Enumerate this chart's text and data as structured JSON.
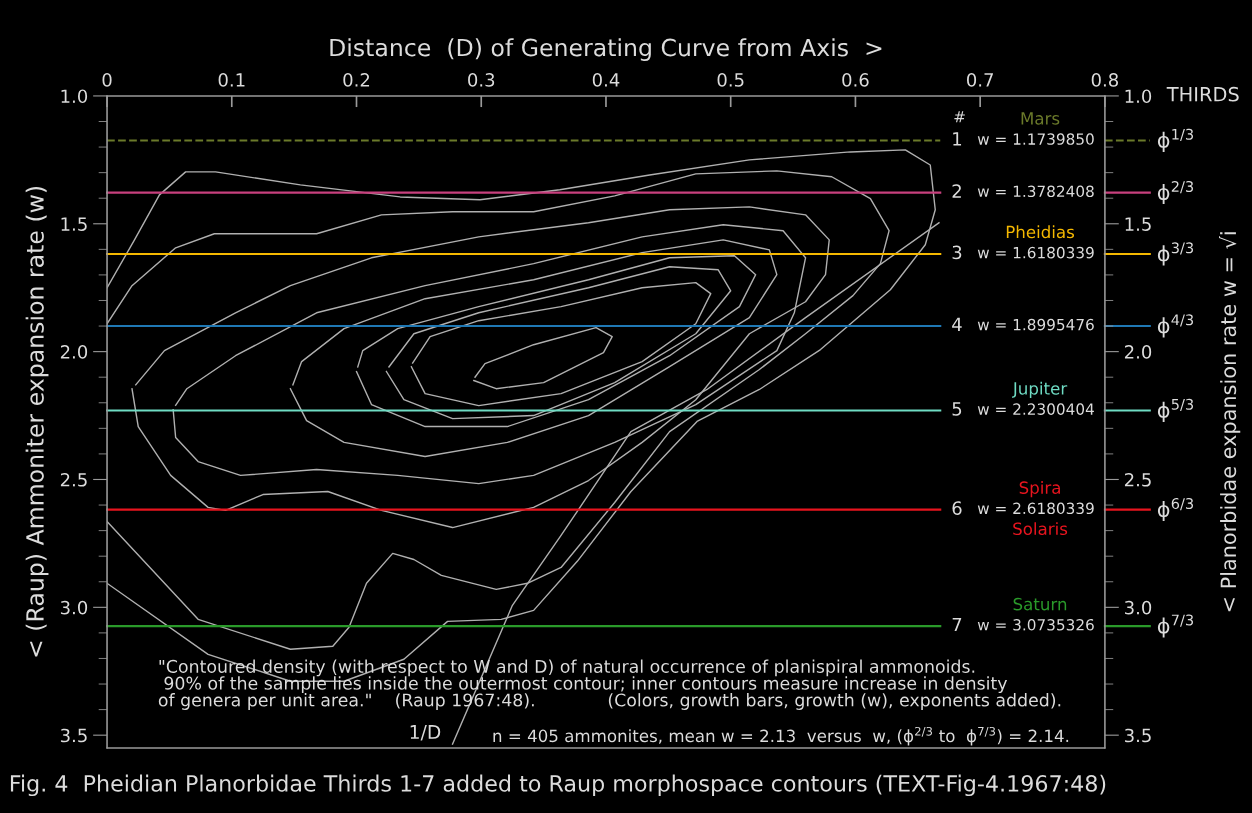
{
  "chart_data": {
    "type": "line",
    "title": "Fig. 4  Pheidian Planorbidae Thirds 1-7 added to Raup morphospace contours (TEXT-Fig-4.1967:48)",
    "xlabel": "Distance  (D) of Generating Curve from Axis  >",
    "ylabel": "< (Raup) Ammoniter expansion rate (w)",
    "y2label": "< Planorbidae expansion rate w = √i",
    "xlim": [
      0,
      0.8
    ],
    "xticks": [
      0,
      0.1,
      0.2,
      0.3,
      0.4,
      0.5,
      0.6,
      0.7,
      0.8
    ],
    "ylim": [
      3.55,
      1.0
    ],
    "yticks": [
      {
        "value": 1.0,
        "label": "1.0"
      },
      {
        "value": 1.5,
        "label": "1.5"
      },
      {
        "value": 2.0,
        "label": "2.0"
      },
      {
        "value": 2.5,
        "label": "2.5"
      },
      {
        "value": 3.0,
        "label": "3.0"
      },
      {
        "value": 3.5,
        "label": "3.5"
      },
      {
        "value": 1.1,
        "label": null
      },
      {
        "value": 1.2,
        "label": null
      },
      {
        "value": 1.3,
        "label": null
      },
      {
        "value": 1.4,
        "label": null
      },
      {
        "value": 1.6,
        "label": null
      },
      {
        "value": 1.7,
        "label": null
      },
      {
        "value": 1.8,
        "label": null
      },
      {
        "value": 1.9,
        "label": null
      },
      {
        "value": 2.1,
        "label": null
      },
      {
        "value": 2.2,
        "label": null
      },
      {
        "value": 2.3,
        "label": null
      },
      {
        "value": 2.4,
        "label": null
      },
      {
        "value": 2.6,
        "label": null
      },
      {
        "value": 2.7,
        "label": null
      },
      {
        "value": 2.8,
        "label": null
      },
      {
        "value": 2.9,
        "label": null
      },
      {
        "value": 3.1,
        "label": null
      },
      {
        "value": 3.2,
        "label": null
      },
      {
        "value": 3.3,
        "label": null
      },
      {
        "value": 3.4,
        "label": null
      }
    ],
    "y2lim": [
      3.55,
      1.0
    ],
    "y2ticks": [
      {
        "value": 1.0,
        "label": "1.0"
      },
      {
        "value": 1.5,
        "label": "1.5"
      },
      {
        "value": 2.0,
        "label": "2.0"
      },
      {
        "value": 2.5,
        "label": "2.5"
      },
      {
        "value": 3.0,
        "label": "3.0"
      },
      {
        "value": 3.5,
        "label": "3.5"
      },
      {
        "value": 1.1,
        "label": null
      },
      {
        "value": 1.2,
        "label": null
      },
      {
        "value": 1.3,
        "label": null
      },
      {
        "value": 1.4,
        "label": null
      },
      {
        "value": 1.6,
        "label": null
      },
      {
        "value": 1.7,
        "label": null
      },
      {
        "value": 1.8,
        "label": null
      },
      {
        "value": 1.9,
        "label": null
      },
      {
        "value": 2.1,
        "label": null
      },
      {
        "value": 2.2,
        "label": null
      },
      {
        "value": 2.3,
        "label": null
      },
      {
        "value": 2.4,
        "label": null
      },
      {
        "value": 2.6,
        "label": null
      },
      {
        "value": 2.7,
        "label": null
      },
      {
        "value": 2.8,
        "label": null
      },
      {
        "value": 2.9,
        "label": null
      },
      {
        "value": 3.1,
        "label": null
      },
      {
        "value": 3.2,
        "label": null
      },
      {
        "value": 3.3,
        "label": null
      },
      {
        "value": 3.4,
        "label": null
      }
    ],
    "series": [
      {
        "color": "#b0b0b0",
        "x": [
          0,
          0.022,
          0.042,
          0.063,
          0.087,
          0.155,
          0.235,
          0.299,
          0.363,
          0.435,
          0.515,
          0.596,
          0.64,
          0.66,
          0.664,
          0.656,
          0.628,
          0.572,
          0.523,
          0.473,
          0.42,
          0.377,
          0.342,
          0.316,
          0.273,
          0.238,
          0.19,
          0.147,
          0.081,
          0
        ],
        "values": [
          1.75,
          1.563,
          1.387,
          1.297,
          1.297,
          1.348,
          1.395,
          1.406,
          1.367,
          1.309,
          1.25,
          1.219,
          1.211,
          1.27,
          1.445,
          1.582,
          1.758,
          1.992,
          2.148,
          2.273,
          2.547,
          2.82,
          3.012,
          3.047,
          3.055,
          3.203,
          3.289,
          3.289,
          3.184,
          2.906
        ]
      },
      {
        "color": "#b0b0b0",
        "x": [
          0,
          0.02,
          0.055,
          0.086,
          0.168,
          0.22,
          0.277,
          0.342,
          0.407,
          0.472,
          0.537,
          0.581,
          0.612,
          0.627,
          0.62,
          0.598,
          0.56,
          0.523,
          0.451,
          0.407,
          0.364,
          0.337,
          0.312,
          0.268,
          0.246,
          0.229,
          0.208,
          0.194,
          0.181,
          0.147,
          0.073,
          0
        ],
        "values": [
          1.891,
          1.742,
          1.594,
          1.539,
          1.539,
          1.465,
          1.453,
          1.453,
          1.391,
          1.305,
          1.293,
          1.316,
          1.402,
          1.527,
          1.656,
          1.781,
          1.93,
          2.07,
          2.313,
          2.59,
          2.844,
          2.906,
          2.93,
          2.875,
          2.813,
          2.789,
          2.906,
          3.078,
          3.152,
          3.164,
          3.047,
          2.664
        ]
      },
      {
        "color": "#b0b0b0",
        "x": [
          0.02,
          0.025,
          0.051,
          0.081,
          0.095,
          0.125,
          0.177,
          0.22,
          0.277,
          0.342,
          0.386,
          0.429,
          0.472,
          0.515,
          0.56,
          0.576,
          0.579,
          0.56,
          0.515,
          0.451,
          0.386,
          0.298,
          0.212,
          0.147,
          0.103,
          0.046,
          0.023
        ],
        "values": [
          2.145,
          2.293,
          2.484,
          2.609,
          2.621,
          2.559,
          2.547,
          2.621,
          2.688,
          2.609,
          2.504,
          2.355,
          2.188,
          1.93,
          1.805,
          1.699,
          1.563,
          1.465,
          1.434,
          1.445,
          1.496,
          1.551,
          1.633,
          1.742,
          1.848,
          1.996,
          2.13
        ]
      },
      {
        "color": "#b0b0b0",
        "x": [
          0.053,
          0.055,
          0.073,
          0.107,
          0.168,
          0.233,
          0.298,
          0.342,
          0.407,
          0.472,
          0.537,
          0.551,
          0.56,
          0.542,
          0.494,
          0.429,
          0.342,
          0.255,
          0.168,
          0.103,
          0.064,
          0.055
        ],
        "values": [
          2.227,
          2.336,
          2.43,
          2.484,
          2.461,
          2.484,
          2.516,
          2.484,
          2.355,
          2.207,
          1.996,
          1.848,
          1.633,
          1.527,
          1.504,
          1.551,
          1.656,
          1.742,
          1.848,
          2.016,
          2.145,
          2.21
        ]
      },
      {
        "color": "#b0b0b0",
        "x": [
          0.147,
          0.16,
          0.19,
          0.255,
          0.321,
          0.386,
          0.451,
          0.515,
          0.537,
          0.531,
          0.494,
          0.429,
          0.342,
          0.255,
          0.19,
          0.156,
          0.149
        ],
        "values": [
          2.145,
          2.27,
          2.355,
          2.41,
          2.355,
          2.25,
          2.059,
          1.867,
          1.699,
          1.602,
          1.563,
          1.613,
          1.719,
          1.793,
          1.91,
          2.039,
          2.13
        ]
      },
      {
        "color": "#b0b0b0",
        "x": [
          0.2,
          0.212,
          0.255,
          0.321,
          0.386,
          0.451,
          0.507,
          0.52,
          0.503,
          0.451,
          0.386,
          0.298,
          0.233,
          0.205,
          0.201
        ],
        "values": [
          2.078,
          2.207,
          2.293,
          2.293,
          2.188,
          2.016,
          1.824,
          1.699,
          1.625,
          1.633,
          1.719,
          1.824,
          1.91,
          1.996,
          2.06
        ]
      },
      {
        "color": "#b0b0b0",
        "x": [
          0.224,
          0.238,
          0.277,
          0.342,
          0.407,
          0.472,
          0.5,
          0.49,
          0.451,
          0.386,
          0.298,
          0.246,
          0.226
        ],
        "values": [
          2.078,
          2.188,
          2.262,
          2.25,
          2.121,
          1.93,
          1.762,
          1.68,
          1.668,
          1.75,
          1.848,
          1.93,
          2.06
        ]
      },
      {
        "color": "#b0b0b0",
        "x": [
          0.244,
          0.255,
          0.298,
          0.364,
          0.429,
          0.472,
          0.484,
          0.472,
          0.429,
          0.364,
          0.298,
          0.259,
          0.245
        ],
        "values": [
          2.059,
          2.164,
          2.211,
          2.164,
          2.039,
          1.891,
          1.773,
          1.73,
          1.75,
          1.824,
          1.879,
          1.941,
          2.045
        ]
      },
      {
        "color": "#b0b0b0",
        "x": [
          0.294,
          0.312,
          0.35,
          0.398,
          0.405,
          0.392,
          0.342,
          0.303,
          0.295
        ],
        "values": [
          2.113,
          2.145,
          2.121,
          2.004,
          1.941,
          1.906,
          1.973,
          2.047,
          2.1
        ]
      },
      {
        "color": "#b0b0b0",
        "x": [
          0.277,
          0.325,
          0.364,
          0.42,
          0.481,
          0.56,
          0.667
        ],
        "values": [
          3.535,
          2.992,
          2.719,
          2.313,
          2.148,
          1.867,
          1.496
        ]
      }
    ],
    "ref_lines": [
      {
        "axis": "y",
        "value": 1.173985,
        "label": "Mars",
        "color": "#6b7a2a",
        "line_style": "dashed"
      },
      {
        "axis": "y",
        "value": 1.3782408,
        "color": "#c8407e"
      },
      {
        "axis": "y",
        "value": 1.6180339,
        "label": "Pheidias",
        "color": "#f5b800"
      },
      {
        "axis": "y",
        "value": 1.8995476,
        "color": "#1f78b4"
      },
      {
        "axis": "y",
        "value": 2.2300404,
        "label": "Jupiter",
        "color": "#6fdcc4"
      },
      {
        "axis": "y",
        "value": 2.6180339,
        "label": "Spira Solaris",
        "color": "#e8141e"
      },
      {
        "axis": "y",
        "value": 3.0735326,
        "label": "Saturn",
        "color": "#2a9a2a"
      }
    ],
    "annotations": [
      "\"Contoured density (with respect to W and D) of natural occurrence of planispiral ammonoids.\n 90% of the sample lies inside the outermost contour; inner contours measure increase in density\nof genera per unit area.\"    (Raup 1967:48).             (Colors, growth bars, growth (w), exponents added).",
      "n = 405 ammonites, mean w = 2.13  versus  w, (ϕ$^{2/3}$ to  ϕ$^{7/3}$) = 2.14.",
      "THIRDS",
      "1/D",
      "#",
      "1",
      "2",
      "3",
      "4",
      "5",
      "6",
      "7",
      "w = 1.1739850",
      "w = 1.3782408",
      "w = 1.6180339",
      "w = 1.8995476",
      "w = 2.2300404",
      "w = 2.6180339",
      "w = 3.0735326",
      "ϕ$^{1/3}$",
      "ϕ$^{2/3}$",
      "ϕ$^{3/3}$",
      "ϕ$^{4/3}$",
      "ϕ$^{5/3}$",
      "ϕ$^{6/3}$",
      "ϕ$^{7/3}$"
    ]
  }
}
